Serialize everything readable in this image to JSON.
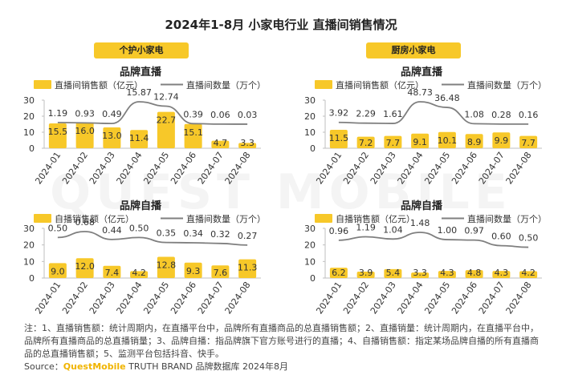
{
  "title": "2024年1-8月 小家电行业 直播间销售情况",
  "sections": [
    {
      "label": "个护小家电"
    },
    {
      "label": "厨房小家电"
    }
  ],
  "colors": {
    "bar": "#f7c829",
    "line": "#7f7f7f",
    "accent": "#f0b400"
  },
  "watermark": "QUEST MOBILE",
  "chart_data": [
    {
      "type": "bar",
      "title": "品牌直播",
      "categories": [
        "2024-01",
        "2024-02",
        "2024-03",
        "2024-04",
        "2024-05",
        "2024-06",
        "2024-07",
        "2024-08"
      ],
      "ylim": [
        0,
        30
      ],
      "yticks": [
        "0",
        "10",
        "20",
        "30"
      ],
      "series": [
        {
          "name": "直播间销售额（亿元）",
          "values": [
            15.5,
            16.0,
            13.0,
            11.4,
            22.7,
            15.1,
            4.7,
            3.3
          ],
          "labels": [
            "15.5",
            "16.0",
            "13.0",
            "11.4",
            "22.7",
            "15.1",
            "4.7",
            "3.3"
          ]
        },
        {
          "name": "直播间数量（万个）",
          "type": "line",
          "values": [
            1.19,
            0.93,
            0.49,
            15.87,
            12.74,
            0.39,
            0.06,
            0.03
          ],
          "labels": [
            "1.19",
            "0.93",
            "0.49",
            "15.87",
            "12.74",
            "0.39",
            "0.06",
            "0.03"
          ]
        }
      ]
    },
    {
      "type": "bar",
      "title": "品牌直播",
      "categories": [
        "2024-01",
        "2024-02",
        "2024-03",
        "2024-04",
        "2024-05",
        "2024-06",
        "2024-07",
        "2024-08"
      ],
      "ylim": [
        0,
        30
      ],
      "yticks": [
        "0",
        "10",
        "20",
        "30"
      ],
      "series": [
        {
          "name": "直播间销售额（亿元）",
          "values": [
            11.5,
            7.2,
            7.7,
            9.1,
            10.1,
            8.9,
            9.9,
            7.7
          ],
          "labels": [
            "11.5",
            "7.2",
            "7.7",
            "9.1",
            "10.1",
            "8.9",
            "9.9",
            "7.7"
          ]
        },
        {
          "name": "直播间数量（万个）",
          "type": "line",
          "values": [
            3.92,
            2.29,
            1.61,
            48.73,
            36.48,
            1.08,
            0.28,
            0.16
          ],
          "labels": [
            "3.92",
            "2.29",
            "1.61",
            "48.73",
            "36.48",
            "1.08",
            "0.28",
            "0.16"
          ]
        }
      ]
    },
    {
      "type": "bar",
      "title": "品牌自播",
      "categories": [
        "2024-01",
        "2024-02",
        "2024-03",
        "2024-04",
        "2024-05",
        "2024-06",
        "2024-07",
        "2024-08"
      ],
      "ylim": [
        0,
        30
      ],
      "yticks": [
        "0",
        "10",
        "20",
        "30"
      ],
      "series": [
        {
          "name": "自播销售额（亿元）",
          "values": [
            9.0,
            12.0,
            7.4,
            4.2,
            12.8,
            9.3,
            7.6,
            11.3
          ],
          "labels": [
            "9.0",
            "12.0",
            "7.4",
            "4.2",
            "12.8",
            "9.3",
            "7.6",
            "11.3"
          ]
        },
        {
          "name": "直播间数量（万个）",
          "type": "line",
          "values": [
            0.5,
            0.68,
            0.44,
            0.5,
            0.35,
            0.34,
            0.32,
            0.27
          ],
          "labels": [
            "0.50",
            "0.68",
            "0.44",
            "0.50",
            "0.35",
            "0.34",
            "0.32",
            "0.27"
          ]
        }
      ]
    },
    {
      "type": "bar",
      "title": "品牌自播",
      "categories": [
        "2024-01",
        "2024-02",
        "2024-03",
        "2024-04",
        "2024-05",
        "2024-06",
        "2024-07",
        "2024-08"
      ],
      "ylim": [
        0,
        30
      ],
      "yticks": [
        "0",
        "10",
        "20",
        "30"
      ],
      "series": [
        {
          "name": "自播销售额（亿元）",
          "values": [
            6.2,
            3.9,
            5.4,
            3.3,
            4.3,
            4.8,
            4.3,
            4.2
          ],
          "labels": [
            "6.2",
            "3.9",
            "5.4",
            "3.3",
            "4.3",
            "4.8",
            "4.3",
            "4.2"
          ]
        },
        {
          "name": "直播间数量（万个）",
          "type": "line",
          "values": [
            0.96,
            1.19,
            1.04,
            1.48,
            1.0,
            0.97,
            0.6,
            0.5
          ],
          "labels": [
            "0.96",
            "1.19",
            "1.04",
            "1.48",
            "1.00",
            "0.97",
            "0.60",
            "0.50"
          ]
        }
      ]
    }
  ],
  "notes": "注：1、直播销售额：统计周期内，在直播平台中，品牌所有直播商品的总直播销售额；2、直播销量：统计周期内，在直播平台中，品牌所有直播商品的总直播销量；3、品牌自播：指品牌旗下官方账号进行的直播；4、自播销售额：指定某场品牌自播的所有直播商品的总直播销售额；5、监测平台包括抖音、快手。",
  "source": {
    "prefix": "Source：",
    "brand": "QuestMobile",
    "rest": " TRUTH BRAND 品牌数据库 2024年8月"
  }
}
